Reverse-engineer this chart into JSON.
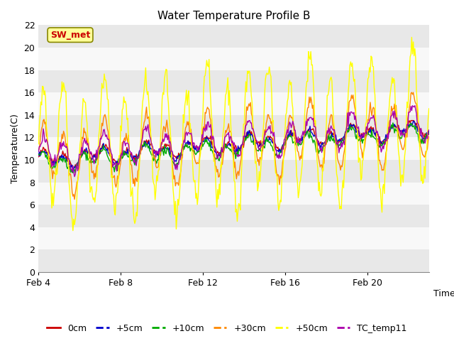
{
  "title": "Water Temperature Profile B",
  "xlabel": "Time",
  "ylabel": "Temperature(C)",
  "ylim": [
    0,
    22
  ],
  "yticks": [
    0,
    2,
    4,
    6,
    8,
    10,
    12,
    14,
    16,
    18,
    20,
    22
  ],
  "background_color": "#ffffff",
  "plot_bg_color": "#ffffff",
  "band_colors": [
    "#e8e8e8",
    "#f8f8f8"
  ],
  "series": [
    {
      "label": "0cm",
      "color": "#cc0000"
    },
    {
      "label": "+5cm",
      "color": "#0000cc"
    },
    {
      "label": "+10cm",
      "color": "#00aa00"
    },
    {
      "label": "+30cm",
      "color": "#ff8800"
    },
    {
      "label": "+50cm",
      "color": "#ffff00"
    },
    {
      "label": "TC_temp11",
      "color": "#aa00aa"
    }
  ],
  "annotation_text": "SW_met",
  "annotation_color": "#cc0000",
  "annotation_bg": "#ffff99",
  "annotation_border": "#888800",
  "x_tick_labels": [
    "Feb 4",
    "Feb 8",
    "Feb 12",
    "Feb 16",
    "Feb 20"
  ],
  "x_tick_positions": [
    0,
    4,
    8,
    12,
    16
  ],
  "figsize": [
    6.4,
    4.8
  ],
  "dpi": 100
}
